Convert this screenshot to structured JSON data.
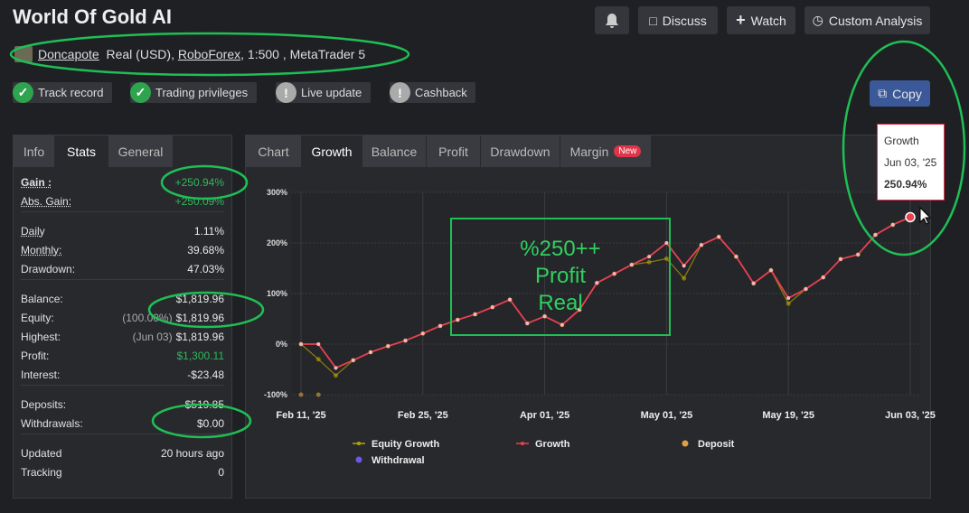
{
  "header": {
    "title": "World Of Gold AI",
    "buttons": [
      "Discuss",
      "Watch",
      "Custom Analysis"
    ]
  },
  "account": {
    "name": "Doncapote",
    "type": "Real (USD),",
    "broker": "RoboForex",
    "details": ", 1:500 , MetaTrader 5"
  },
  "badges": [
    "Track record",
    "Trading privileges",
    "Live update",
    "Cashback"
  ],
  "copy_button": "Copy",
  "stats": {
    "tabs": [
      "Info",
      "Stats",
      "General"
    ],
    "groups": [
      [
        {
          "label": "Gain :",
          "value": "+250.94%"
        },
        {
          "label": "Abs. Gain:",
          "value": "+250.09%"
        }
      ],
      [
        {
          "label": "Daily",
          "value": "1.11%"
        },
        {
          "label": "Monthly:",
          "value": "39.68%"
        },
        {
          "label": "Drawdown:",
          "value": "47.03%"
        }
      ],
      [
        {
          "label": "Balance:",
          "value": "$1,819.96"
        },
        {
          "label": "Equity:",
          "note": "(100.00%)",
          "value": "$1,819.96"
        },
        {
          "label": "Highest:",
          "note": "(Jun 03)",
          "value": "$1,819.96"
        },
        {
          "label": "Profit:",
          "value": "$1,300.11"
        },
        {
          "label": "Interest:",
          "value": "-$23.48"
        }
      ],
      [
        {
          "label": "Deposits:",
          "value": "$519.85"
        },
        {
          "label": "Withdrawals:",
          "value": "$0.00"
        }
      ],
      [
        {
          "label": "Updated",
          "value": "20 hours ago"
        },
        {
          "label": "Tracking",
          "value": "0"
        }
      ]
    ]
  },
  "chart_tabs": {
    "tabs": [
      "Chart",
      "Growth",
      "Balance",
      "Profit",
      "Drawdown",
      "Margin"
    ],
    "new_badge": "New"
  },
  "tooltip": {
    "title": "Growth",
    "date": "Jun 03, '25",
    "value": "250.94%"
  },
  "annotation": [
    "%250++",
    "Profit",
    "Real"
  ],
  "chart_data": {
    "type": "line",
    "categories": [
      "Feb 11, '25",
      null,
      null,
      null,
      null,
      null,
      null,
      "Feb 25, '25",
      null,
      null,
      null,
      null,
      null,
      null,
      "Apr 01, '25",
      null,
      null,
      null,
      null,
      null,
      null,
      "May 01, '25",
      null,
      null,
      null,
      null,
      null,
      null,
      "May 19, '25",
      null,
      null,
      null,
      null,
      null,
      null,
      "Jun 03, '25"
    ],
    "series": [
      {
        "name": "Equity Growth",
        "color": "#b8a400",
        "values": [
          0,
          -30,
          -62,
          -32,
          -16,
          -4,
          7,
          21,
          36,
          48,
          59,
          73,
          88,
          41,
          55,
          38,
          68,
          121,
          139,
          157,
          162,
          169,
          130,
          196,
          212,
          173,
          120,
          146,
          80,
          109,
          132,
          168,
          177,
          216,
          236,
          250.94
        ]
      },
      {
        "name": "Growth",
        "color": "#e8414f",
        "values": [
          0,
          0,
          -47,
          -32,
          -16,
          -4,
          7,
          21,
          36,
          48,
          59,
          73,
          88,
          41,
          55,
          38,
          68,
          121,
          139,
          157,
          173,
          200,
          155,
          196,
          212,
          173,
          120,
          146,
          91,
          109,
          132,
          168,
          177,
          216,
          236,
          250.94
        ]
      },
      {
        "name": "Deposit",
        "color": "#e0a040",
        "values": [
          -100,
          -100,
          null,
          null,
          null,
          null,
          null,
          null,
          null,
          null,
          null,
          null,
          null,
          null,
          null,
          null,
          null,
          null,
          null,
          null,
          null,
          null,
          null,
          null,
          null,
          null,
          null,
          null,
          null,
          null,
          null,
          null,
          null,
          null,
          null,
          null
        ]
      },
      {
        "name": "Withdrawal",
        "color": "#6a5ae0",
        "values": [
          null,
          null,
          null,
          null,
          null,
          null,
          null,
          null,
          null,
          null,
          null,
          null,
          null,
          null,
          null,
          null,
          null,
          null,
          null,
          null,
          null,
          null,
          null,
          null,
          null,
          null,
          null,
          null,
          null,
          null,
          null,
          null,
          null,
          null,
          null,
          null
        ]
      }
    ],
    "ylim": [
      -100,
      300
    ],
    "yticks": [
      {
        "value": -100,
        "label": "-100%"
      },
      {
        "value": 0,
        "label": "0%"
      },
      {
        "value": 100,
        "label": "100%"
      },
      {
        "value": 200,
        "label": "200%"
      },
      {
        "value": 300,
        "label": "300%"
      }
    ],
    "grid": true
  }
}
